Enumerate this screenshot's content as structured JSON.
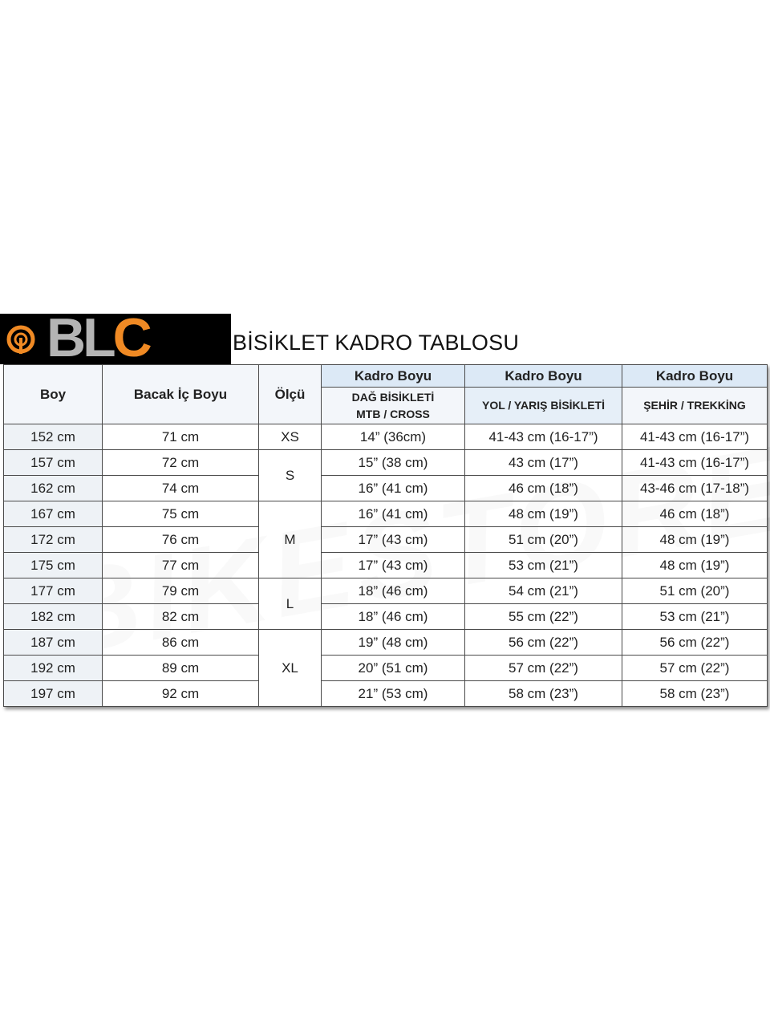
{
  "logo": {
    "text": "BLC",
    "watermark": "BIKESTORE",
    "colors": {
      "orange": "#f08a24",
      "gray": "#b4b4b4",
      "background": "#000000"
    }
  },
  "title": "BİSİKLET KADRO TABLOSU",
  "headers": {
    "boy": "Boy",
    "bacak": "Bacak İç Boyu",
    "olcu": "Ölçü",
    "kadro": [
      "Kadro Boyu",
      "Kadro Boyu",
      "Kadro Boyu"
    ],
    "mtb_line1": "DAĞ BİSİKLETİ",
    "mtb_line2": "MTB / CROSS",
    "yol": "YOL / YARIŞ BİSİKLETİ",
    "sehir": "ŞEHİR / TREKKİNG"
  },
  "sizes": [
    {
      "label": "XS",
      "rows": 1
    },
    {
      "label": "S",
      "rows": 2
    },
    {
      "label": "M",
      "rows": 3
    },
    {
      "label": "L",
      "rows": 2
    },
    {
      "label": "XL",
      "rows": 3
    }
  ],
  "rows": [
    {
      "boy": "152 cm",
      "bacak": "71 cm",
      "mtb": "14” (36cm)",
      "yol": "41-43 cm (16-17”)",
      "sehir": "41-43 cm (16-17”)"
    },
    {
      "boy": "157 cm",
      "bacak": "72 cm",
      "mtb": "15” (38 cm)",
      "yol": "43 cm (17”)",
      "sehir": "41-43 cm (16-17”)"
    },
    {
      "boy": "162 cm",
      "bacak": "74 cm",
      "mtb": "16” (41 cm)",
      "yol": "46 cm (18”)",
      "sehir": "43-46 cm (17-18”)"
    },
    {
      "boy": "167 cm",
      "bacak": "75 cm",
      "mtb": "16” (41 cm)",
      "yol": "48 cm (19”)",
      "sehir": "46 cm (18”)"
    },
    {
      "boy": "172 cm",
      "bacak": "76 cm",
      "mtb": "17” (43 cm)",
      "yol": "51 cm (20”)",
      "sehir": "48 cm (19”)"
    },
    {
      "boy": "175 cm",
      "bacak": "77 cm",
      "mtb": "17” (43 cm)",
      "yol": "53 cm (21”)",
      "sehir": "48 cm (19”)"
    },
    {
      "boy": "177 cm",
      "bacak": "79 cm",
      "mtb": "18” (46 cm)",
      "yol": "54 cm (21”)",
      "sehir": "51 cm (20”)"
    },
    {
      "boy": "182 cm",
      "bacak": "82 cm",
      "mtb": "18” (46 cm)",
      "yol": "55 cm (22”)",
      "sehir": "53 cm (21”)"
    },
    {
      "boy": "187 cm",
      "bacak": "86 cm",
      "mtb": "19” (48 cm)",
      "yol": "56 cm (22”)",
      "sehir": "56 cm (22”)"
    },
    {
      "boy": "192 cm",
      "bacak": "89 cm",
      "mtb": "20” (51 cm)",
      "yol": "57 cm (22”)",
      "sehir": "57 cm (22”)"
    },
    {
      "boy": "197 cm",
      "bacak": "92 cm",
      "mtb": "21” (53 cm)",
      "yol": "58 cm (23”)",
      "sehir": "58 cm (23”)"
    }
  ]
}
